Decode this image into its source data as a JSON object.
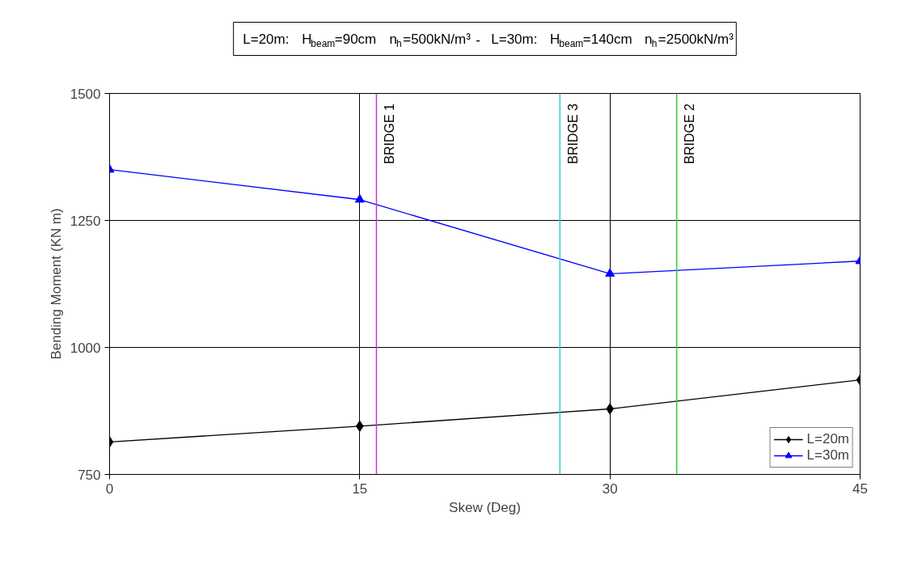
{
  "chart_data": {
    "type": "line",
    "title": "L=20m:   H$_{beam}$=90cm   n$_{h}$=500kN/m³  -  L=30m:   H$_{beam}$=140cm   n$_{h}$=2500kN/m³",
    "xlabel": "Skew (Deg)",
    "ylabel": "Bending Moment (KN m)",
    "x": [
      0,
      15,
      30,
      45
    ],
    "series": [
      {
        "name": "L=20m",
        "color": "#000000",
        "marker": "diamond",
        "values": [
          814,
          845,
          879,
          936
        ]
      },
      {
        "name": "L=30m",
        "color": "#0000ff",
        "marker": "triangle",
        "values": [
          1350,
          1291,
          1145,
          1170
        ]
      }
    ],
    "xlim": [
      0,
      45
    ],
    "xticks": [
      0,
      15,
      30,
      45
    ],
    "ylim": [
      750,
      1500
    ],
    "yticks": [
      750,
      1000,
      1250,
      1500
    ],
    "grid": true,
    "legend": "bottom right",
    "line_style": "solid",
    "ref_lines": [
      {
        "axis": "x",
        "value": 16,
        "label": "BRIDGE 1",
        "color": "#cc33cc"
      },
      {
        "axis": "x",
        "value": 27,
        "label": "BRIDGE 3",
        "color": "#33cccc"
      },
      {
        "axis": "x",
        "value": 34,
        "label": "BRIDGE 2",
        "color": "#33cc33"
      }
    ]
  }
}
